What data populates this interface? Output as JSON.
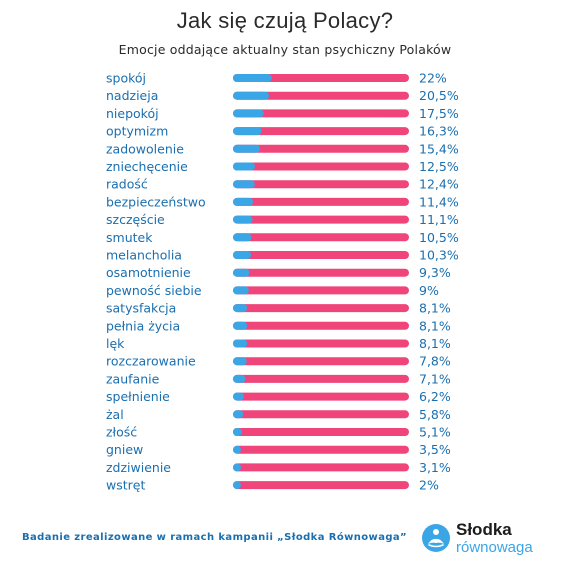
{
  "header": {
    "title": "Jak się czują Polacy?",
    "subtitle": "Emocje oddające aktualny stan psychiczny Polaków"
  },
  "footer": {
    "note": "Badanie zrealizowane w ramach kampanii „Słodka Równowaga”"
  },
  "logo": {
    "word1": "Słodka",
    "word2": "równowaga"
  },
  "colors": {
    "bar_fill": "#3aa6e6",
    "bar_track": "#f0457a",
    "label": "#1a6fb0"
  },
  "chart_data": {
    "type": "bar",
    "orientation": "horizontal",
    "categories": [
      "spokój",
      "nadzieja",
      "niepokój",
      "optymizm",
      "zadowolenie",
      "zniechęcenie",
      "radość",
      "bezpieczeństwo",
      "szczęście",
      "smutek",
      "melancholia",
      "osamotnienie",
      "pewność siebie",
      "satysfakcja",
      "pełnia życia",
      "lęk",
      "rozczarowanie",
      "zaufanie",
      "spełnienie",
      "żal",
      "złość",
      "gniew",
      "zdziwienie",
      "wstręt"
    ],
    "values": [
      22,
      20.5,
      17.5,
      16.3,
      15.4,
      12.5,
      12.4,
      11.4,
      11.1,
      10.5,
      10.3,
      9.3,
      9,
      8.1,
      8.1,
      8.1,
      7.8,
      7.1,
      6.2,
      5.8,
      5.1,
      3.5,
      3.1,
      2
    ],
    "value_labels": [
      "22%",
      "20,5%",
      "17,5%",
      "16,3%",
      "15,4%",
      "12,5%",
      "12,4%",
      "11,4%",
      "11,1%",
      "10,5%",
      "10,3%",
      "9,3%",
      "9%",
      "8,1%",
      "8,1%",
      "8,1%",
      "7,8%",
      "7,1%",
      "6,2%",
      "5,8%",
      "5,1%",
      "3,5%",
      "3,1%",
      "2%"
    ],
    "xlim": [
      0,
      100
    ],
    "grid": false,
    "legend": false
  }
}
